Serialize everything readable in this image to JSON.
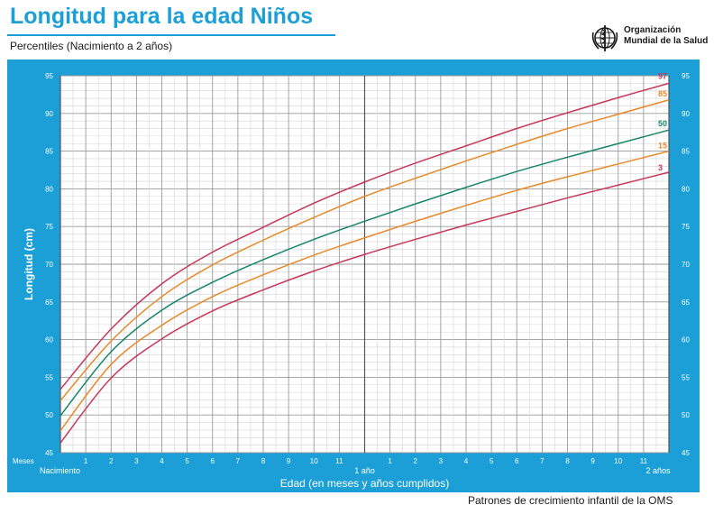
{
  "header": {
    "title": "Longitud para la edad Niños",
    "subtitle": "Percentiles (Nacimiento a 2 años)",
    "org_line1": "Organización",
    "org_line2": "Mundial de la Salud"
  },
  "footer": {
    "text": "Patrones de crecimiento infantil de la OMS"
  },
  "colors": {
    "frame": "#1b9fd6",
    "p97": "#c8365a",
    "p85": "#e8892a",
    "p50": "#15866a",
    "p15": "#e8892a",
    "p3": "#c8365a"
  },
  "chart_data": {
    "type": "line",
    "title": "Longitud para la edad Niños",
    "subtitle": "Percentiles (Nacimiento a 2 años)",
    "xlabel": "Edad (en meses y años cumplidos)",
    "ylabel": "Longitud (cm)",
    "x_axis_word": "Meses",
    "xlim": [
      0,
      24
    ],
    "ylim": [
      45,
      95
    ],
    "yticks": [
      45,
      50,
      55,
      60,
      65,
      70,
      75,
      80,
      85,
      90,
      95
    ],
    "month_ticks": [
      "1",
      "2",
      "3",
      "4",
      "5",
      "6",
      "7",
      "8",
      "9",
      "10",
      "11",
      "",
      "1",
      "2",
      "3",
      "4",
      "5",
      "6",
      "7",
      "8",
      "9",
      "10",
      "11"
    ],
    "year_labels": [
      {
        "month": 0,
        "text": "Nacimiento"
      },
      {
        "month": 12,
        "text": "1 año"
      },
      {
        "month": 24,
        "text": "2 años"
      }
    ],
    "grid": true,
    "x": [
      0,
      2,
      4,
      6,
      8,
      10,
      12,
      14,
      16,
      18,
      20,
      22,
      24
    ],
    "series": [
      {
        "name": "97",
        "color": "#c8365a",
        "values": [
          53.4,
          61.4,
          67.4,
          71.6,
          74.9,
          78.1,
          80.9,
          83.4,
          85.7,
          88.0,
          90.1,
          92.1,
          94.0
        ]
      },
      {
        "name": "85",
        "color": "#e8892a",
        "values": [
          51.9,
          59.8,
          65.7,
          69.9,
          73.2,
          76.2,
          79.0,
          81.4,
          83.7,
          85.9,
          88.0,
          89.9,
          91.8
        ]
      },
      {
        "name": "50",
        "color": "#15866a",
        "values": [
          49.9,
          58.4,
          63.9,
          67.6,
          70.6,
          73.3,
          75.7,
          78.0,
          80.2,
          82.3,
          84.2,
          86.0,
          87.8
        ]
      },
      {
        "name": "15",
        "color": "#e8892a",
        "values": [
          47.9,
          56.7,
          61.9,
          65.7,
          68.6,
          71.2,
          73.5,
          75.7,
          77.8,
          79.8,
          81.6,
          83.3,
          85.0
        ]
      },
      {
        "name": "3",
        "color": "#c8365a",
        "values": [
          46.3,
          54.9,
          60.1,
          63.8,
          66.6,
          69.1,
          71.3,
          73.3,
          75.2,
          77.0,
          78.8,
          80.5,
          82.2
        ]
      }
    ]
  }
}
